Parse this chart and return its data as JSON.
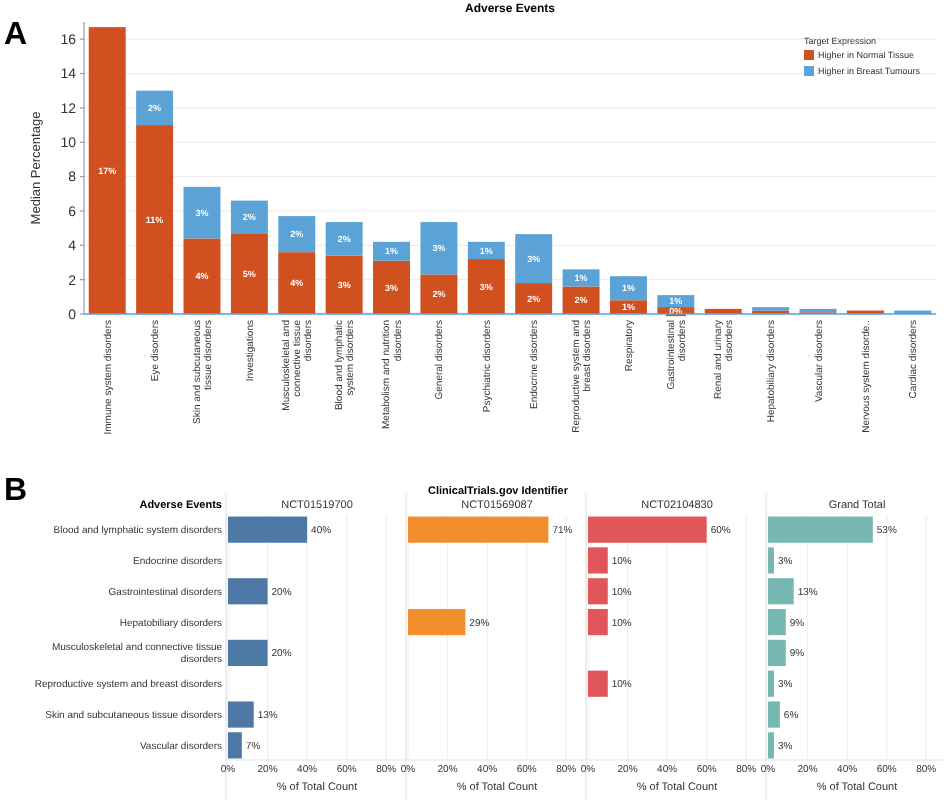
{
  "chart_data": [
    {
      "type": "bar",
      "stacked": true,
      "title": "Adverse Events",
      "ylabel": "Median Percentage",
      "legend_title": "Target Expression",
      "legend": "top right",
      "grid": "y",
      "annotations": [
        "A"
      ],
      "categories": [
        "Immune system disorders",
        "Eye disorders",
        "Skin and subcutaneous tissue disorders",
        "Investigations",
        "Musculoskeletal and connective tissue disorders",
        "Blood and lymphatic system disorders",
        "Metabolism and nutrition disorders",
        "General disorders",
        "Psychiatric disorders",
        "Endocrine disorders",
        "Reproductive system and breast disorders",
        "Respiratory",
        "Gastrointestinal disorders",
        "Renal and urinary disorders",
        "Hepatobiliary disorders",
        "Vascular disorders",
        "Nervous system disorde..",
        "Cardiac disorders"
      ],
      "ylim": [
        0,
        17
      ],
      "yticks": [
        0,
        2,
        4,
        6,
        8,
        10,
        12,
        14,
        16
      ],
      "series": [
        {
          "name": "Higher in Normal Tissue",
          "color": "#d1501f",
          "values": [
            16.7,
            11,
            4.4,
            4.7,
            3.6,
            3.4,
            3.1,
            2.3,
            3.2,
            1.8,
            1.6,
            0.8,
            0.4,
            0.3,
            0.2,
            0.1,
            0.2,
            0
          ],
          "value_labels": [
            "17%",
            "11%",
            "4%",
            "5%",
            "4%",
            "3%",
            "3%",
            "2%",
            "3%",
            "2%",
            "2%",
            "1%",
            "0%",
            null,
            null,
            null,
            null,
            null
          ]
        },
        {
          "name": "Higher in Breast Tumours",
          "color": "#5ba3d6",
          "values": [
            0,
            2,
            3,
            1.9,
            2.1,
            1.95,
            1.1,
            3.05,
            1,
            2.85,
            1,
            1.4,
            0.7,
            0,
            0.2,
            0.2,
            0,
            0.2
          ],
          "value_labels": [
            null,
            "2%",
            "3%",
            "2%",
            "2%",
            "2%",
            "1%",
            "3%",
            "1%",
            "3%",
            "1%",
            "1%",
            "1%",
            null,
            null,
            null,
            null,
            null
          ]
        }
      ]
    },
    {
      "type": "bar",
      "orientation": "horizontal",
      "title": "NCT01519700",
      "ylabel": "Adverse Events",
      "xlabel": "% of Total Count",
      "grid": "x",
      "annotations": [
        "B",
        "ClinicalTrials.gov Identifier"
      ],
      "categories": [
        "Blood and lymphatic system disorders",
        "Endocrine disorders",
        "Gastrointestinal disorders",
        "Hepatobiliary disorders",
        "Musculoskeletal and connective tissue disorders",
        "Reproductive system and breast disorders",
        "Skin and subcutaneous tissue disorders",
        "Vascular disorders"
      ],
      "xlim": [
        0,
        90
      ],
      "xticks": [
        {
          "value": 0,
          "label": "0%"
        },
        {
          "value": 20,
          "label": "20%"
        },
        {
          "value": 40,
          "label": "40%"
        },
        {
          "value": 60,
          "label": "60%"
        },
        {
          "value": 80,
          "label": "80%"
        }
      ],
      "series": [
        {
          "color": "#4e79a7",
          "values": [
            40,
            null,
            20,
            null,
            20,
            null,
            13,
            7
          ],
          "value_labels": [
            "40%",
            null,
            "20%",
            null,
            "20%",
            null,
            "13%",
            "7%"
          ]
        }
      ]
    },
    {
      "type": "bar",
      "orientation": "horizontal",
      "title": "NCT01569087",
      "xlabel": "% of Total Count",
      "grid": "x",
      "tick_labels": "x",
      "categories": [
        null,
        null,
        null,
        null,
        null,
        null,
        null,
        null
      ],
      "xlim": [
        0,
        90
      ],
      "xticks": [
        {
          "value": 0,
          "label": "0%"
        },
        {
          "value": 20,
          "label": "20%"
        },
        {
          "value": 40,
          "label": "40%"
        },
        {
          "value": 60,
          "label": "60%"
        },
        {
          "value": 80,
          "label": "80%"
        }
      ],
      "series": [
        {
          "color": "#f28e2b",
          "values": [
            71,
            null,
            null,
            29,
            null,
            null,
            null,
            null
          ],
          "value_labels": [
            "71%",
            null,
            null,
            "29%",
            null,
            null,
            null,
            null
          ]
        }
      ]
    },
    {
      "type": "bar",
      "orientation": "horizontal",
      "title": "NCT02104830",
      "xlabel": "% of Total Count",
      "grid": "x",
      "tick_labels": "x",
      "categories": [
        null,
        null,
        null,
        null,
        null,
        null,
        null,
        null
      ],
      "xlim": [
        0,
        90
      ],
      "xticks": [
        {
          "value": 0,
          "label": "0%"
        },
        {
          "value": 20,
          "label": "20%"
        },
        {
          "value": 40,
          "label": "40%"
        },
        {
          "value": 60,
          "label": "60%"
        },
        {
          "value": 80,
          "label": "80%"
        }
      ],
      "series": [
        {
          "color": "#e15759",
          "values": [
            60,
            10,
            10,
            10,
            null,
            10,
            null,
            null
          ],
          "value_labels": [
            "60%",
            "10%",
            "10%",
            "10%",
            null,
            "10%",
            null,
            null
          ]
        }
      ]
    },
    {
      "type": "bar",
      "orientation": "horizontal",
      "title": "Grand Total",
      "xlabel": "% of Total Count",
      "grid": "x",
      "tick_labels": "x",
      "categories": [
        null,
        null,
        null,
        null,
        null,
        null,
        null,
        null
      ],
      "xlim": [
        0,
        90
      ],
      "xticks": [
        {
          "value": 0,
          "label": "0%"
        },
        {
          "value": 20,
          "label": "20%"
        },
        {
          "value": 40,
          "label": "40%"
        },
        {
          "value": 60,
          "label": "60%"
        },
        {
          "value": 80,
          "label": "80%"
        }
      ],
      "series": [
        {
          "color": "#76b7b2",
          "values": [
            53,
            3,
            13,
            9,
            9,
            3,
            6,
            3
          ],
          "value_labels": [
            "53%",
            "3%",
            "13%",
            "9%",
            "9%",
            "3%",
            "6%",
            "3%"
          ]
        }
      ]
    }
  ]
}
